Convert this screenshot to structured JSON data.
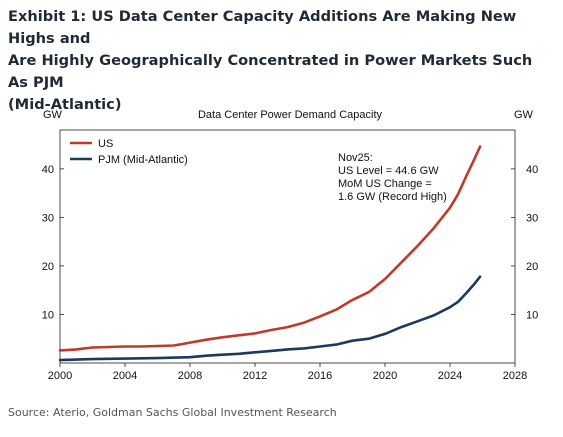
{
  "header": {
    "title_lines": [
      "Exhibit 1: US Data Center Capacity Additions Are Making New Highs and",
      "Are Highly Geographically Concentrated in Power Markets Such As PJM",
      "(Mid-Atlantic)"
    ]
  },
  "footer": {
    "source": "Source: Aterio, Goldman Sachs Global Investment Research"
  },
  "chart_data": {
    "type": "line",
    "title": "Data Center Power Demand Capacity",
    "ylabel_left": "GW",
    "ylabel_right": "GW",
    "xlim": [
      2000,
      2028
    ],
    "ylim": [
      0,
      48
    ],
    "x_ticks": [
      2000,
      2004,
      2008,
      2012,
      2016,
      2020,
      2024,
      2028
    ],
    "y_ticks": [
      10,
      20,
      30,
      40
    ],
    "grid": false,
    "legend_position": "top-left",
    "annotation": [
      "Nov25:",
      "US Level = 44.6 GW",
      "MoM US Change =",
      "1.6 GW (Record High)"
    ],
    "series": [
      {
        "name": "US",
        "color": "#c0392b",
        "points": [
          [
            2000,
            2.6
          ],
          [
            2001,
            2.8
          ],
          [
            2002,
            3.2
          ],
          [
            2003,
            3.3
          ],
          [
            2004,
            3.4
          ],
          [
            2005,
            3.4
          ],
          [
            2006,
            3.5
          ],
          [
            2007,
            3.6
          ],
          [
            2007.5,
            3.9
          ],
          [
            2008,
            4.2
          ],
          [
            2009,
            4.8
          ],
          [
            2010,
            5.3
          ],
          [
            2011,
            5.7
          ],
          [
            2012,
            6.1
          ],
          [
            2013,
            6.8
          ],
          [
            2014,
            7.4
          ],
          [
            2015,
            8.3
          ],
          [
            2016,
            9.6
          ],
          [
            2017,
            11.0
          ],
          [
            2018,
            13.0
          ],
          [
            2019,
            14.6
          ],
          [
            2020,
            17.3
          ],
          [
            2021,
            20.7
          ],
          [
            2022,
            24.1
          ],
          [
            2023,
            27.8
          ],
          [
            2024,
            32.0
          ],
          [
            2024.5,
            34.8
          ],
          [
            2025,
            38.5
          ],
          [
            2025.5,
            42.0
          ],
          [
            2025.85,
            44.6
          ]
        ]
      },
      {
        "name": "PJM (Mid-Atlantic)",
        "color": "#1b3a5c",
        "points": [
          [
            2000,
            0.6
          ],
          [
            2002,
            0.8
          ],
          [
            2004,
            0.9
          ],
          [
            2006,
            1.0
          ],
          [
            2008,
            1.2
          ],
          [
            2009,
            1.5
          ],
          [
            2010,
            1.7
          ],
          [
            2011,
            1.9
          ],
          [
            2012,
            2.2
          ],
          [
            2013,
            2.5
          ],
          [
            2014,
            2.8
          ],
          [
            2015,
            3.0
          ],
          [
            2016,
            3.4
          ],
          [
            2017,
            3.8
          ],
          [
            2018,
            4.6
          ],
          [
            2019,
            5.0
          ],
          [
            2020,
            6.0
          ],
          [
            2021,
            7.4
          ],
          [
            2022,
            8.6
          ],
          [
            2023,
            9.8
          ],
          [
            2024,
            11.5
          ],
          [
            2024.5,
            12.6
          ],
          [
            2025,
            14.4
          ],
          [
            2025.5,
            16.3
          ],
          [
            2025.85,
            17.8
          ]
        ]
      }
    ]
  }
}
